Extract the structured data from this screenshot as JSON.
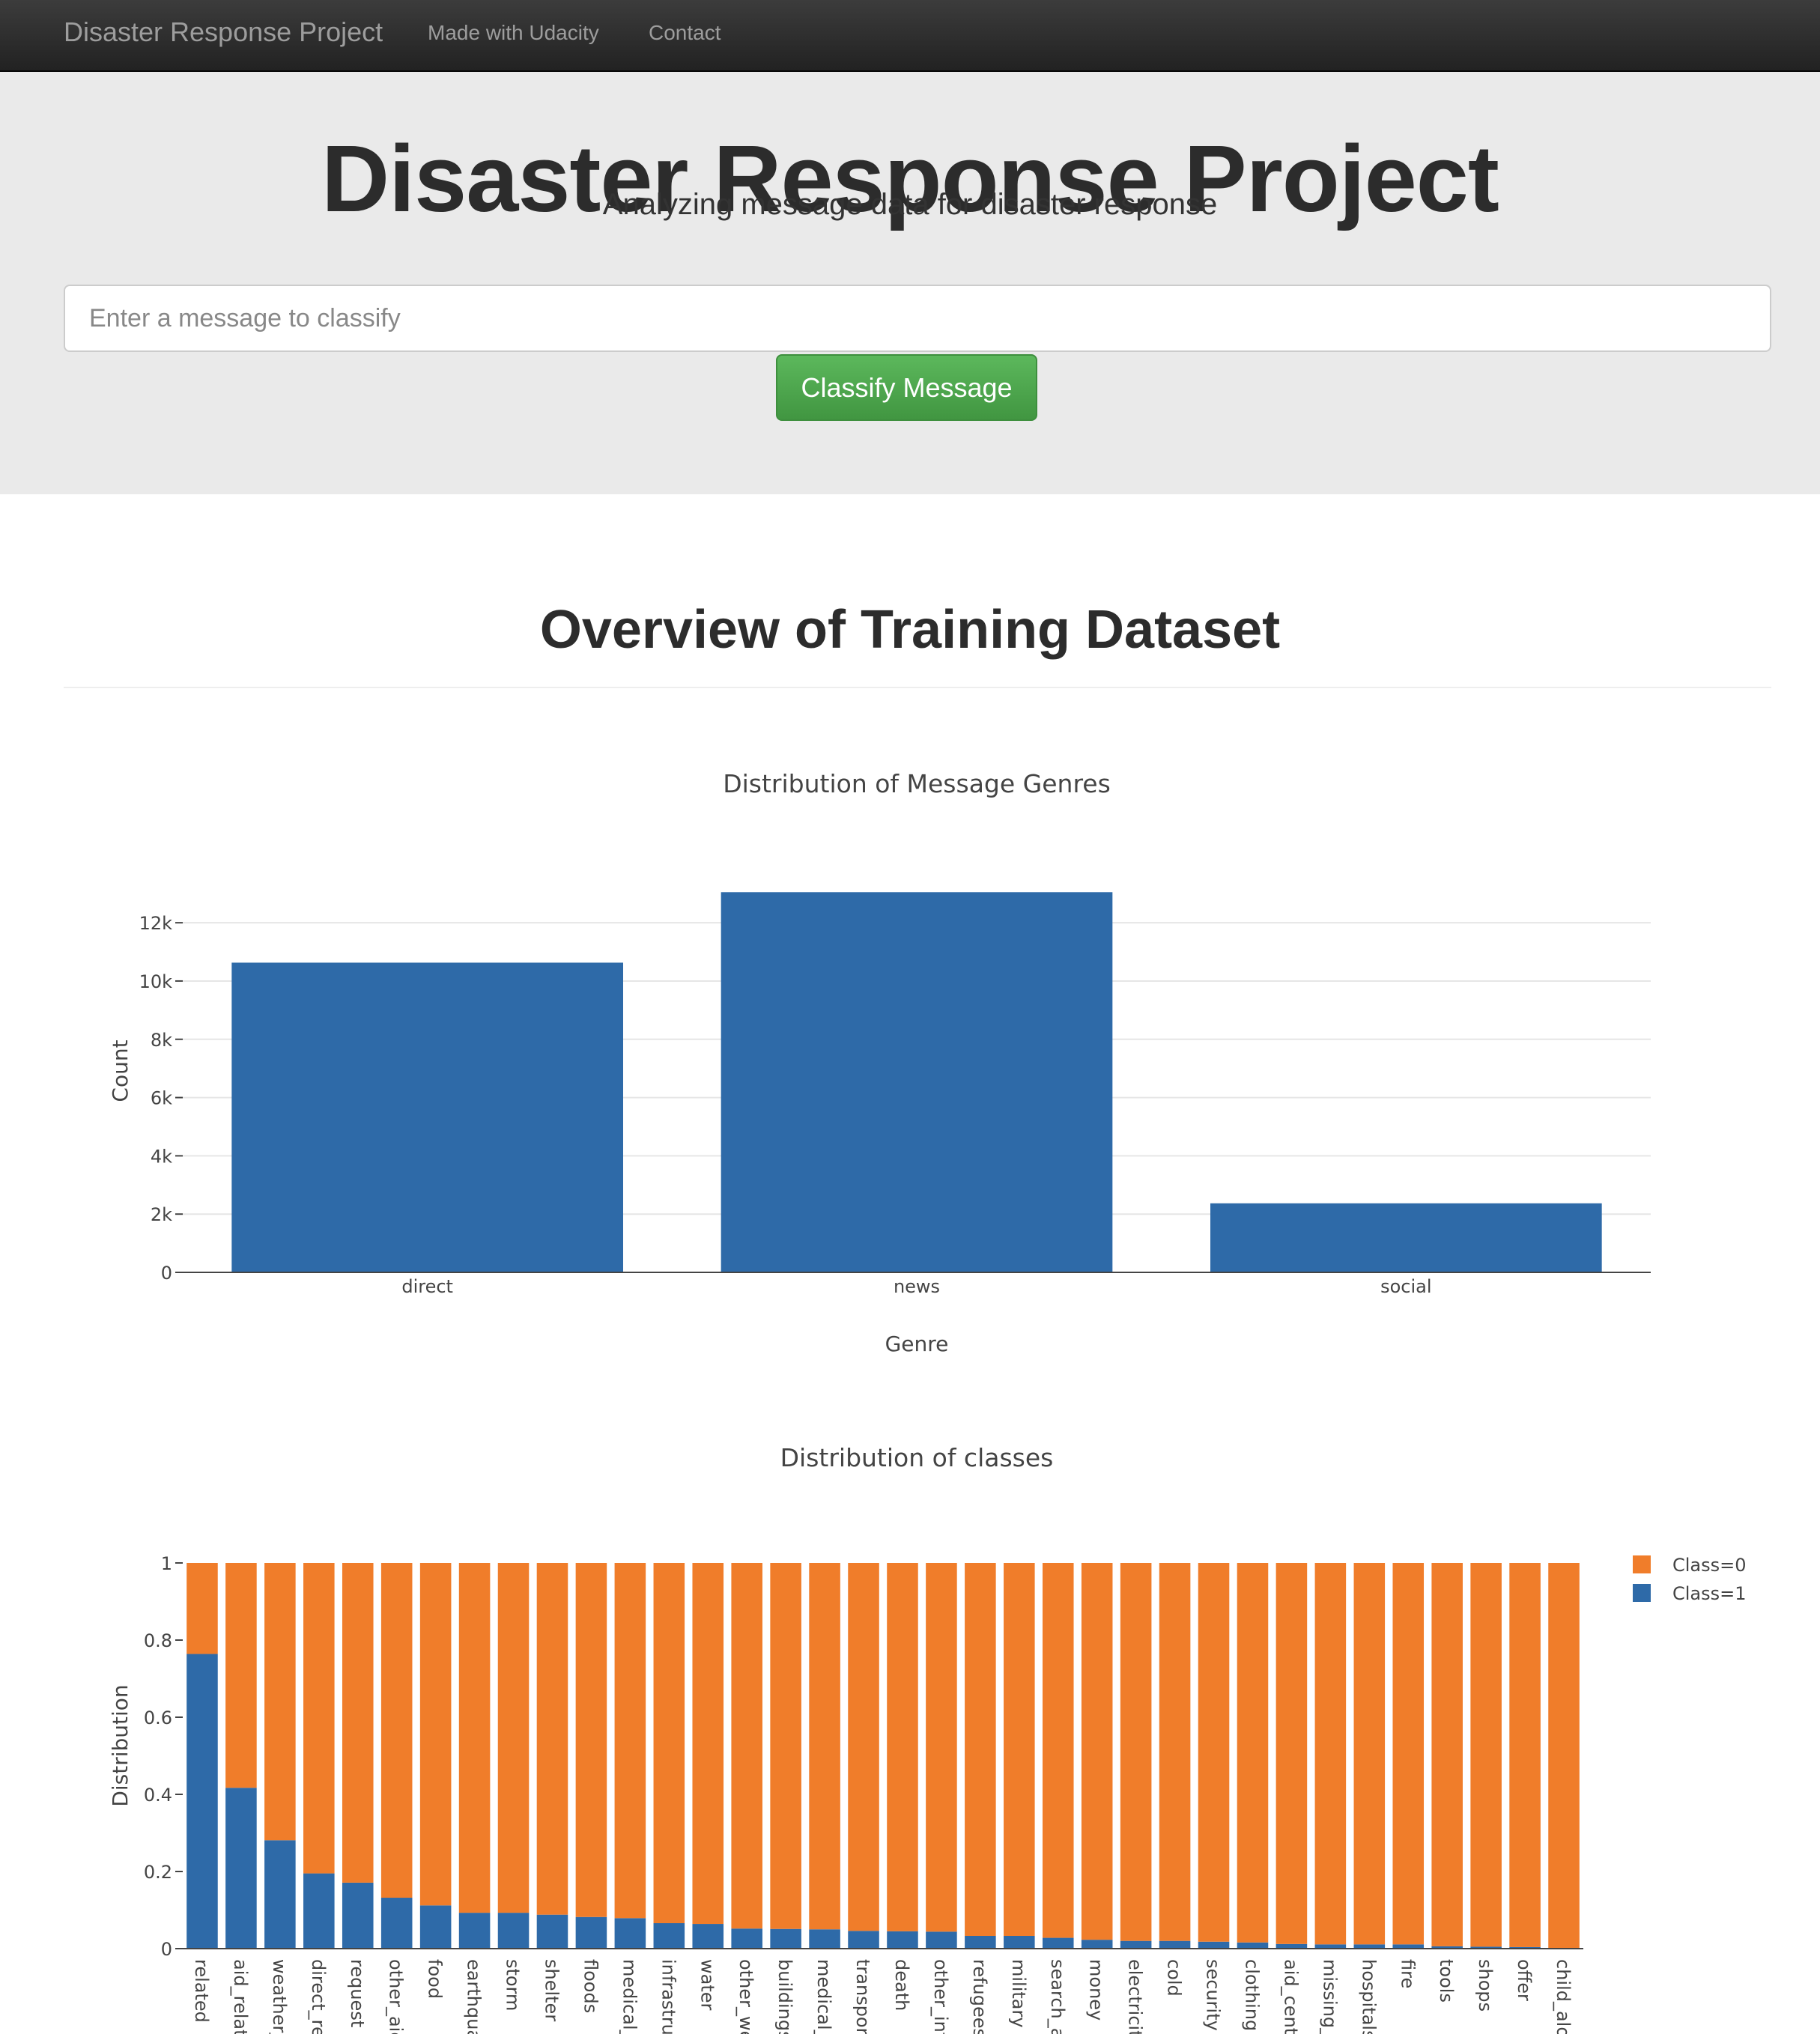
{
  "navbar": {
    "brand": "Disaster Response Project",
    "links": [
      "Made with Udacity",
      "Contact"
    ]
  },
  "hero": {
    "title": "Disaster Response Project",
    "subtitle": "Analyzing message data for disaster response",
    "input_placeholder": "Enter a message to classify",
    "button_label": "Classify Message"
  },
  "overview": {
    "title": "Overview of Training Dataset"
  },
  "colors": {
    "bar_blue": "#2e6aa8",
    "bar_orange": "#f07d2a",
    "btn_green": "#5cb85c"
  },
  "chart_data": [
    {
      "type": "bar",
      "title": "Distribution of Message Genres",
      "xlabel": "Genre",
      "ylabel": "Count",
      "categories": [
        "direct",
        "news",
        "social"
      ],
      "values": [
        10630,
        13050,
        2370
      ],
      "ylim": [
        0,
        13700
      ],
      "yticks": [
        0,
        2000,
        4000,
        6000,
        8000,
        10000,
        12000
      ],
      "ytick_labels": [
        "0",
        "2k",
        "4k",
        "6k",
        "8k",
        "10k",
        "12k"
      ],
      "grid": true
    },
    {
      "type": "bar",
      "stacked": true,
      "title": "Distribution of classes",
      "xlabel": "",
      "ylabel": "Distribution",
      "ylim": [
        0,
        1
      ],
      "yticks": [
        0,
        0.2,
        0.4,
        0.6,
        0.8,
        1
      ],
      "ytick_labels": [
        "0",
        "0.2",
        "0.4",
        "0.6",
        "0.8",
        "1"
      ],
      "legend_position": "top-right",
      "categories": [
        "related",
        "aid_related",
        "weather_related",
        "direct_report",
        "request",
        "other_aid",
        "food",
        "earthquake",
        "storm",
        "shelter",
        "floods",
        "medical_help",
        "infrastructure_related",
        "water",
        "other_weather",
        "buildings",
        "medical_products",
        "transport",
        "death",
        "other_infrastructure",
        "refugees",
        "military",
        "search_and_rescue",
        "money",
        "electricity",
        "cold",
        "security",
        "clothing",
        "aid_centers",
        "missing_people",
        "hospitals",
        "fire",
        "tools",
        "shops",
        "offer",
        "child_alone"
      ],
      "tick_labels": [
        "related",
        "aid_relate",
        "weather_",
        "direct_rep",
        "request",
        "other_aid",
        "food",
        "earthqua",
        "storm",
        "shelter",
        "floods",
        "medical_h",
        "infrastruc",
        "water",
        "other_we",
        "buildings",
        "medical_p",
        "transport",
        "death",
        "other_infr",
        "refugees",
        "military",
        "search_an",
        "money",
        "electricity",
        "cold",
        "security",
        "clothing",
        "aid_cente",
        "missing_p",
        "hospitals",
        "fire",
        "tools",
        "shops",
        "offer",
        "child_alon"
      ],
      "series": [
        {
          "name": "Class=0",
          "values": [
            0.236,
            0.583,
            0.719,
            0.805,
            0.829,
            0.868,
            0.888,
            0.907,
            0.907,
            0.912,
            0.918,
            0.921,
            0.934,
            0.936,
            0.948,
            0.949,
            0.95,
            0.954,
            0.955,
            0.956,
            0.967,
            0.967,
            0.972,
            0.977,
            0.98,
            0.98,
            0.982,
            0.984,
            0.988,
            0.989,
            0.989,
            0.989,
            0.994,
            0.995,
            0.996,
            1.0
          ]
        },
        {
          "name": "Class=1",
          "values": [
            0.764,
            0.417,
            0.281,
            0.195,
            0.171,
            0.132,
            0.112,
            0.093,
            0.093,
            0.088,
            0.082,
            0.079,
            0.066,
            0.064,
            0.052,
            0.051,
            0.05,
            0.046,
            0.045,
            0.044,
            0.033,
            0.033,
            0.028,
            0.023,
            0.02,
            0.02,
            0.018,
            0.016,
            0.012,
            0.011,
            0.011,
            0.011,
            0.006,
            0.005,
            0.004,
            0.0
          ]
        }
      ]
    }
  ]
}
